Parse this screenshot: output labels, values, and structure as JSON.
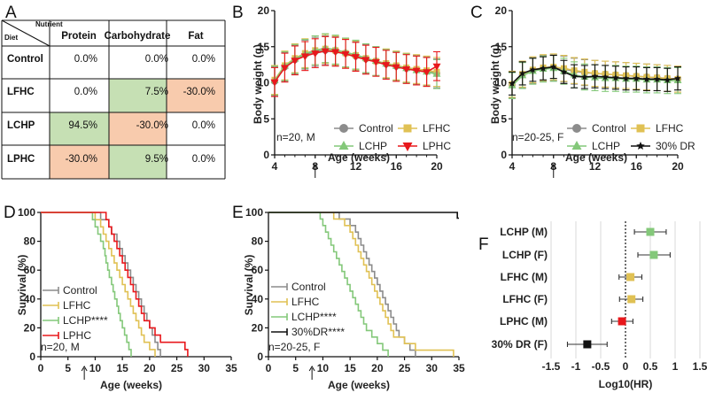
{
  "panels": {
    "a": "A",
    "b": "B",
    "c": "C",
    "d": "D",
    "e": "E",
    "f": "F"
  },
  "colors": {
    "control": "#8c8c8c",
    "lfhc": "#e0c154",
    "lchp": "#84c87a",
    "lphc": "#e8181c",
    "dr": "#111111",
    "green_cell": "#c6e0b4",
    "orange_cell": "#f8cbad"
  },
  "table": {
    "corner_top": "Nutrient",
    "corner_bottom": "Diet",
    "columns": [
      "Protein",
      "Carbohydrate",
      "Fat"
    ],
    "rows": [
      {
        "name": "Control",
        "values": [
          "0.0%",
          "0.0%",
          "0.0%"
        ],
        "fill": [
          "",
          "",
          ""
        ]
      },
      {
        "name": "LFHC",
        "values": [
          "0.0%",
          "7.5%",
          "-30.0%"
        ],
        "fill": [
          "",
          "green",
          "orange"
        ]
      },
      {
        "name": "LCHP",
        "values": [
          "94.5%",
          "-30.0%",
          "0.0%"
        ],
        "fill": [
          "green",
          "orange",
          ""
        ]
      },
      {
        "name": "LPHC",
        "values": [
          "-30.0%",
          "9.5%",
          "0.0%"
        ],
        "fill": [
          "orange",
          "green",
          ""
        ]
      }
    ]
  },
  "chart_data": [
    {
      "panel": "B",
      "type": "line",
      "xlabel": "Age (weeks)",
      "ylabel": "Body weight (g)",
      "xlim": [
        4,
        20
      ],
      "ylim": [
        0,
        20
      ],
      "xticks": [
        4,
        8,
        12,
        16,
        20
      ],
      "yticks": [
        0,
        5,
        10,
        15,
        20
      ],
      "annotation": "n=20, M",
      "arrow_at": 8,
      "legend_position": "bottom-right",
      "x": [
        4,
        5,
        6,
        7,
        8,
        9,
        10,
        11,
        12,
        13,
        14,
        15,
        16,
        17,
        18,
        19,
        20
      ],
      "series": [
        {
          "name": "Control",
          "key": "control",
          "marker": "circle",
          "values": [
            10.2,
            12.2,
            13.2,
            13.9,
            14.3,
            14.5,
            14.4,
            14.1,
            13.7,
            13.3,
            13.0,
            12.6,
            12.3,
            12.0,
            11.8,
            11.6,
            11.3
          ],
          "err": 2.0
        },
        {
          "name": "LFHC",
          "key": "lfhc",
          "marker": "square",
          "values": [
            10.4,
            12.4,
            13.4,
            14.1,
            14.5,
            14.7,
            14.5,
            14.1,
            13.8,
            13.4,
            13.0,
            12.7,
            12.4,
            12.1,
            11.9,
            11.7,
            11.5
          ],
          "err": 2.0
        },
        {
          "name": "LCHP",
          "key": "lchp",
          "marker": "triangle-up",
          "values": [
            10.3,
            12.3,
            13.3,
            14.0,
            14.5,
            14.8,
            14.6,
            14.2,
            13.9,
            13.4,
            13.0,
            12.6,
            12.3,
            12.0,
            11.7,
            11.5,
            11.2
          ],
          "err": 2.0
        },
        {
          "name": "LPHC",
          "key": "lphc",
          "marker": "triangle-down",
          "values": [
            10.1,
            12.1,
            13.1,
            13.7,
            14.1,
            14.4,
            14.3,
            14.0,
            13.6,
            13.2,
            12.9,
            12.5,
            12.2,
            11.9,
            11.7,
            11.5,
            12.3
          ],
          "err": 2.0
        }
      ]
    },
    {
      "panel": "C",
      "type": "line",
      "xlabel": "Age (weeks)",
      "ylabel": "Body weight (g)",
      "xlim": [
        4,
        20
      ],
      "ylim": [
        0,
        20
      ],
      "xticks": [
        4,
        8,
        12,
        16,
        20
      ],
      "yticks": [
        0,
        5,
        10,
        15,
        20
      ],
      "annotation": "n=20-25, F",
      "arrow_at": 8,
      "legend_position": "bottom-right",
      "x": [
        4,
        5,
        6,
        7,
        8,
        9,
        10,
        11,
        12,
        13,
        14,
        15,
        16,
        17,
        18,
        19,
        20
      ],
      "series": [
        {
          "name": "Control",
          "key": "control",
          "marker": "circle",
          "values": [
            9.7,
            11.1,
            11.7,
            12.0,
            12.1,
            11.9,
            11.6,
            11.4,
            11.3,
            11.2,
            11.1,
            11.0,
            10.9,
            10.8,
            10.7,
            10.6,
            10.5
          ],
          "err": 1.8
        },
        {
          "name": "LFHC",
          "key": "lfhc",
          "marker": "square",
          "values": [
            9.8,
            11.2,
            11.8,
            12.1,
            12.2,
            12.0,
            11.7,
            11.5,
            11.3,
            11.2,
            11.1,
            11.0,
            10.9,
            10.8,
            10.7,
            10.6,
            10.5
          ],
          "err": 1.8
        },
        {
          "name": "LCHP",
          "key": "lchp",
          "marker": "triangle-up",
          "values": [
            9.6,
            11.0,
            11.6,
            11.9,
            12.0,
            11.6,
            11.1,
            10.8,
            10.7,
            10.6,
            10.6,
            10.5,
            10.5,
            10.4,
            10.4,
            10.3,
            10.3
          ],
          "err": 1.8
        },
        {
          "name": "30% DR",
          "key": "dr",
          "marker": "star",
          "values": [
            9.9,
            11.3,
            11.8,
            12.0,
            12.2,
            11.5,
            10.9,
            10.8,
            10.9,
            10.8,
            10.7,
            10.6,
            10.6,
            10.5,
            10.5,
            10.4,
            10.6
          ],
          "err": 1.6
        }
      ]
    },
    {
      "panel": "D",
      "type": "line",
      "xlabel": "Age (weeks)",
      "ylabel": "Survival  (%)",
      "xlim": [
        0,
        35
      ],
      "ylim": [
        0,
        100
      ],
      "xticks": [
        0,
        5,
        10,
        15,
        20,
        25,
        30,
        35
      ],
      "yticks": [
        0,
        20,
        40,
        60,
        80,
        100
      ],
      "annotation": "n=20, M",
      "arrow_at": 8,
      "legend_position": "bottom-left",
      "series": [
        {
          "name": "Control",
          "key": "control",
          "times": [
            11,
            12.5,
            13,
            14,
            14.5,
            15,
            15.5,
            16,
            16.5,
            17,
            17.5,
            18,
            18.5,
            19,
            19.5,
            20,
            20.5,
            21,
            21.5,
            22
          ],
          "n": 20
        },
        {
          "name": "LFHC",
          "key": "lfhc",
          "times": [
            10,
            11,
            11.5,
            12,
            12.5,
            13,
            13.5,
            14,
            14.5,
            15,
            15.5,
            16,
            16.5,
            17,
            17.5,
            18,
            18.5,
            19,
            20,
            21
          ],
          "n": 20
        },
        {
          "name": "LCHP****",
          "key": "lchp",
          "times": [
            9.5,
            10,
            10.5,
            11,
            11.5,
            11.8,
            12,
            12.3,
            12.6,
            13,
            13.3,
            13.6,
            14,
            14.3,
            14.6,
            15,
            15.4,
            15.8,
            16.2,
            16.6
          ],
          "n": 20
        },
        {
          "name": "LPHC",
          "key": "lphc",
          "times": [
            12,
            12.5,
            13,
            13.5,
            14,
            14.5,
            15,
            15.5,
            16,
            16.5,
            17,
            17.5,
            18,
            18.5,
            19,
            20,
            21,
            22,
            26.5,
            27
          ],
          "n": 20
        }
      ]
    },
    {
      "panel": "E",
      "type": "line",
      "xlabel": "Age (weeks)",
      "ylabel": "Survival  (%)",
      "xlim": [
        0,
        35
      ],
      "ylim": [
        0,
        100
      ],
      "xticks": [
        0,
        5,
        10,
        15,
        20,
        25,
        30,
        35
      ],
      "yticks": [
        0,
        20,
        40,
        60,
        80,
        100
      ],
      "annotation": "n=20-25, F",
      "arrow_at": 8,
      "legend_position": "bottom-left",
      "series": [
        {
          "name": "Control",
          "key": "control",
          "times": [
            13,
            15,
            16,
            16.5,
            17,
            17.5,
            18,
            18.5,
            19,
            19.5,
            20,
            20.5,
            21,
            21.5,
            22,
            22.5,
            23,
            23.5,
            24,
            25,
            26,
            27
          ],
          "n": 22
        },
        {
          "name": "LFHC",
          "key": "lfhc",
          "times": [
            12,
            14,
            15,
            15.5,
            16,
            16.5,
            17,
            17.5,
            18,
            18.5,
            19,
            19.5,
            20,
            20.5,
            21,
            21.5,
            22,
            22.5,
            23,
            25,
            27,
            34
          ],
          "n": 22
        },
        {
          "name": "LCHP****",
          "key": "lchp",
          "times": [
            9.5,
            10,
            10.5,
            11,
            11.5,
            12,
            12.5,
            13,
            13.5,
            14,
            14.5,
            15,
            15.5,
            16,
            16.5,
            17,
            17.5,
            18,
            19,
            20,
            21,
            22
          ],
          "n": 22
        },
        {
          "name": "30%DR****",
          "key": "dr",
          "times": [
            34.7
          ],
          "n": 25
        }
      ]
    },
    {
      "panel": "F",
      "type": "scatter",
      "xlabel": "Log10(HR)",
      "ylabel": "",
      "xlim": [
        -1.5,
        1.5
      ],
      "xticks": [
        -1.5,
        -1,
        -0.5,
        0,
        0.5,
        1,
        1.5
      ],
      "categories": [
        "LCHP (M)",
        "LCHP (F)",
        "LFHC (M)",
        "LFHC (F)",
        "LPHC (M)",
        "30% DR (F)"
      ],
      "values": [
        0.5,
        0.57,
        0.1,
        0.12,
        -0.07,
        -0.77
      ],
      "ci_low": [
        0.18,
        0.25,
        -0.13,
        -0.12,
        -0.28,
        -1.17
      ],
      "ci_high": [
        0.82,
        0.9,
        0.33,
        0.35,
        0.15,
        -0.37
      ],
      "colors": [
        "#84c87a",
        "#84c87a",
        "#e0c154",
        "#e0c154",
        "#e8181c",
        "#111111"
      ]
    }
  ]
}
